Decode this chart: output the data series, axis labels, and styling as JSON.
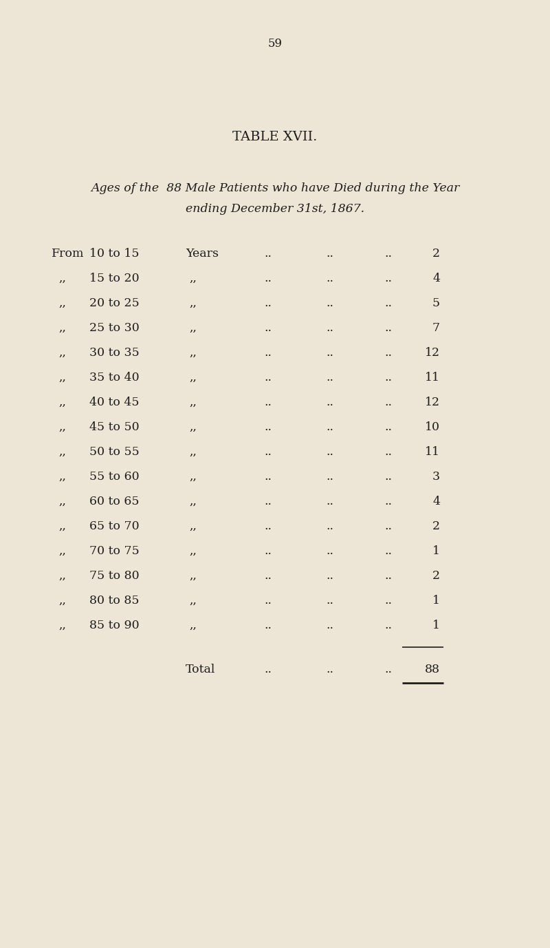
{
  "page_number": "59",
  "title": "TABLE XVII.",
  "subtitle_line1": "Ages of the  88 Male Patients who have Died during the Year",
  "subtitle_line2": "ending December 31st, 1867.",
  "rows": [
    {
      "prefix": "From",
      "range": "10 to 15",
      "unit": "Years",
      "value": "2"
    },
    {
      "prefix": ",,",
      "range": "15 to 20",
      "unit": ",,",
      "value": "4"
    },
    {
      "prefix": ",,",
      "range": "20 to 25",
      "unit": ",,",
      "value": "5"
    },
    {
      "prefix": ",,",
      "range": "25 to 30",
      "unit": ",,",
      "value": "7"
    },
    {
      "prefix": ",,",
      "range": "30 to 35",
      "unit": ",,",
      "value": "12"
    },
    {
      "prefix": ",,",
      "range": "35 to 40",
      "unit": ",,",
      "value": "11"
    },
    {
      "prefix": ",,",
      "range": "40 to 45",
      "unit": ",,",
      "value": "12"
    },
    {
      "prefix": ",,",
      "range": "45 to 50",
      "unit": ",,",
      "value": "10"
    },
    {
      "prefix": ",,",
      "range": "50 to 55",
      "unit": ",,",
      "value": "11"
    },
    {
      "prefix": ",,",
      "range": "55 to 60",
      "unit": ",,",
      "value": "3"
    },
    {
      "prefix": ",,",
      "range": "60 to 65",
      "unit": ",,",
      "value": "4"
    },
    {
      "prefix": ",,",
      "range": "65 to 70",
      "unit": ",,",
      "value": "2"
    },
    {
      "prefix": ",,",
      "range": "70 to 75",
      "unit": ",,",
      "value": "1"
    },
    {
      "prefix": ",,",
      "range": "75 to 80",
      "unit": ",,",
      "value": "2"
    },
    {
      "prefix": ",,",
      "range": "80 to 85",
      "unit": ",,",
      "value": "1"
    },
    {
      "prefix": ",,",
      "range": "85 to 90",
      "unit": ",,",
      "value": "1"
    }
  ],
  "total_label": "Total",
  "total_value": "88",
  "bg_color": "#ede5d5",
  "text_color": "#1c1c1c",
  "page_num_fontsize": 12,
  "title_fontsize": 14,
  "subtitle_fontsize": 12.5,
  "row_fontsize": 12.5,
  "total_fontsize": 12.5
}
